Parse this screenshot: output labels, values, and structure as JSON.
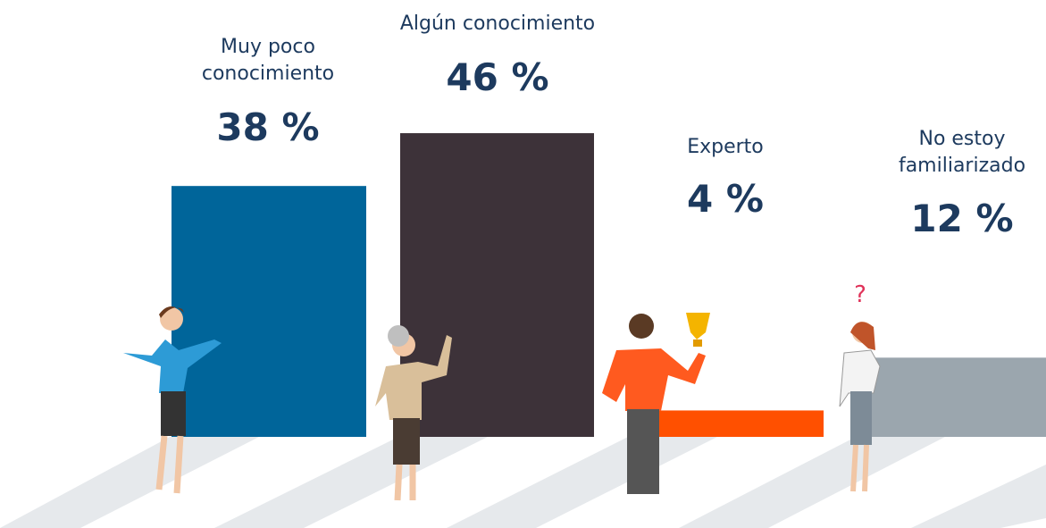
{
  "chart_data": {
    "type": "bar",
    "categories": [
      "Muy poco conocimiento",
      "Algún conocimiento",
      "Experto",
      "No estoy familiarizado"
    ],
    "values": [
      38,
      46,
      4,
      12
    ],
    "value_labels": [
      "38 %",
      "46 %",
      "4 %",
      "12 %"
    ],
    "colors": [
      "#00659a",
      "#3d3239",
      "#ff5000",
      "#9ba6ae"
    ]
  }
}
